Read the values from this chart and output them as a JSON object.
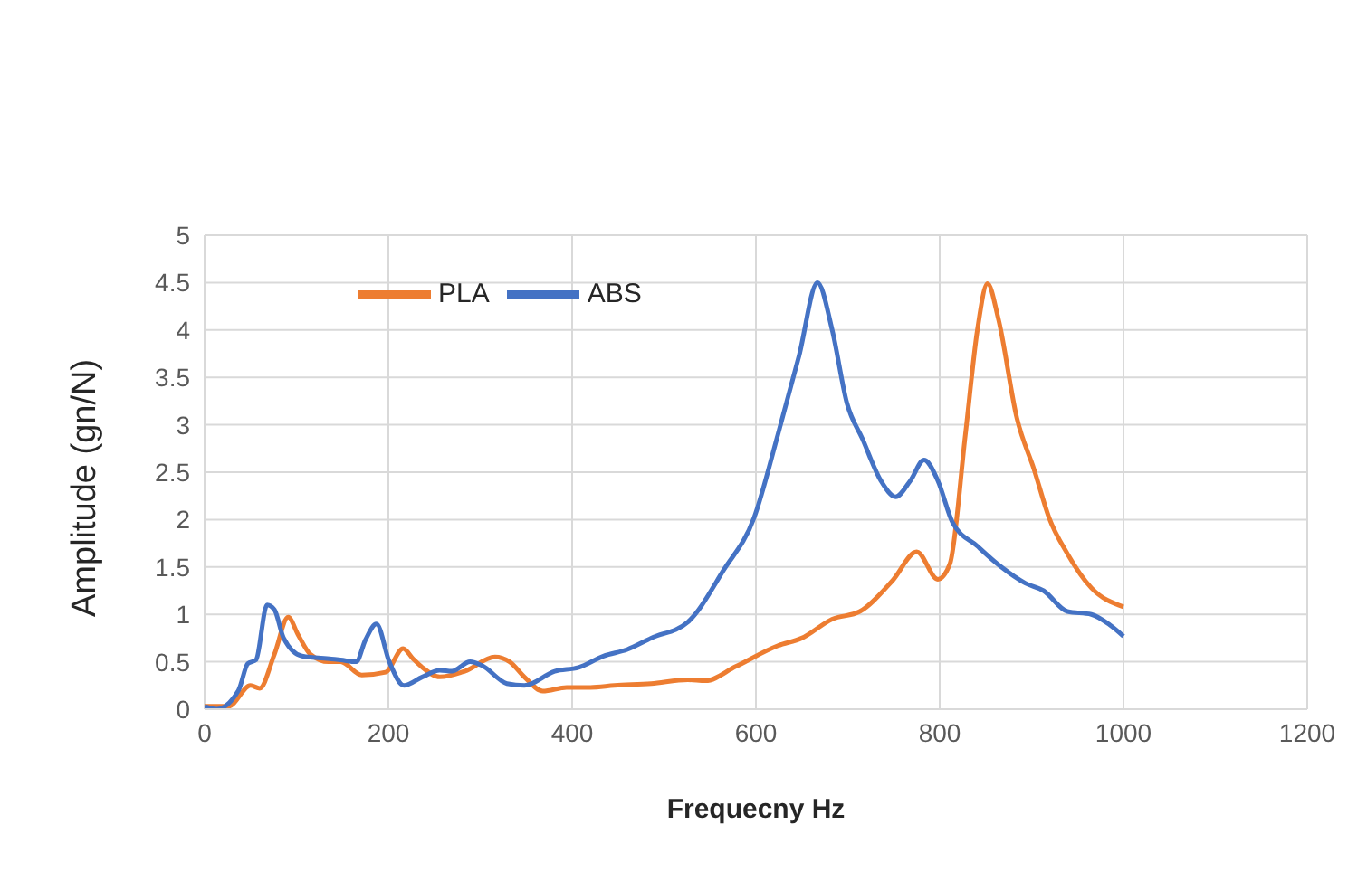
{
  "chart_data": {
    "type": "line",
    "xlabel": "Frequecny Hz",
    "ylabel": "Amplitude (gn/N)",
    "xlim": [
      0,
      1200
    ],
    "xticks": [
      0,
      200,
      400,
      600,
      800,
      1000,
      1200
    ],
    "ylim": [
      0,
      5
    ],
    "yticks": [
      0,
      0.5,
      1,
      1.5,
      2,
      2.5,
      3,
      3.5,
      4,
      4.5,
      5
    ],
    "grid": true,
    "legend": "top left",
    "marker": "none",
    "line_style": "solid",
    "series": [
      {
        "name": "PLA",
        "color": "#ed7d31",
        "x": [
          0,
          26,
          50,
          60,
          76,
          91,
          102,
          115,
          135,
          148,
          171,
          197,
          216,
          227,
          237,
          256,
          283,
          316,
          332,
          348,
          368,
          394,
          420,
          446,
          486,
          526,
          545,
          578,
          624,
          650,
          683,
          713,
          749,
          775,
          798,
          811,
          828,
          841,
          852,
          864,
          884,
          903,
          919,
          939,
          965,
          1000
        ],
        "values": [
          0.03,
          0.03,
          0.25,
          0.22,
          0.58,
          0.97,
          0.78,
          0.58,
          0.5,
          0.5,
          0.36,
          0.39,
          0.64,
          0.53,
          0.44,
          0.34,
          0.4,
          0.55,
          0.5,
          0.34,
          0.19,
          0.23,
          0.23,
          0.25,
          0.27,
          0.31,
          0.3,
          0.45,
          0.67,
          0.75,
          0.95,
          1.03,
          1.36,
          1.66,
          1.37,
          1.53,
          2.9,
          4.0,
          4.49,
          4.11,
          3.07,
          2.52,
          2.02,
          1.64,
          1.28,
          1.08
        ]
      },
      {
        "name": "ABS",
        "color": "#4472c4",
        "x": [
          0,
          13,
          37,
          47,
          56,
          68,
          76,
          86,
          106,
          138,
          148,
          165,
          175,
          187,
          201,
          217,
          237,
          256,
          269,
          289,
          302,
          329,
          348,
          381,
          407,
          434,
          460,
          486,
          526,
          565,
          598,
          624,
          647,
          667,
          683,
          699,
          716,
          736,
          752,
          768,
          783,
          798,
          814,
          841,
          867,
          893,
          913,
          939,
          965,
          985,
          1000
        ],
        "values": [
          0.03,
          0.0,
          0.2,
          0.48,
          0.52,
          1.1,
          1.05,
          0.75,
          0.56,
          0.53,
          0.52,
          0.5,
          0.73,
          0.9,
          0.5,
          0.25,
          0.34,
          0.41,
          0.4,
          0.5,
          0.46,
          0.27,
          0.25,
          0.4,
          0.44,
          0.56,
          0.63,
          0.75,
          0.92,
          1.47,
          2.02,
          2.9,
          3.73,
          4.5,
          4.0,
          3.23,
          2.85,
          2.41,
          2.24,
          2.41,
          2.63,
          2.41,
          1.97,
          1.72,
          1.5,
          1.33,
          1.25,
          1.03,
          1.0,
          0.89,
          0.77
        ]
      }
    ]
  }
}
